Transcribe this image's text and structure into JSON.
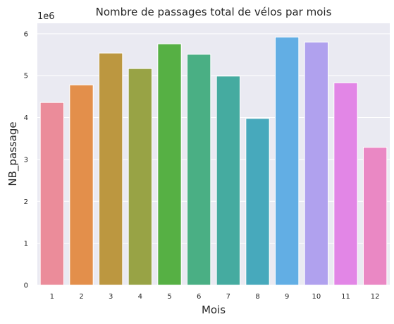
{
  "chart_data": {
    "type": "bar",
    "title": "Nombre de passages total de vélos par mois",
    "xlabel": "Mois",
    "ylabel": "NB_passage",
    "offset_label": "1e6",
    "categories": [
      "1",
      "2",
      "3",
      "4",
      "5",
      "6",
      "7",
      "8",
      "9",
      "10",
      "11",
      "12"
    ],
    "values": [
      4360000,
      4780000,
      5540000,
      5170000,
      5760000,
      5510000,
      4990000,
      3980000,
      5920000,
      5800000,
      4830000,
      3290000
    ],
    "ylim": [
      0,
      6250000
    ],
    "yticks": [
      0,
      1000000,
      2000000,
      3000000,
      4000000,
      5000000,
      6000000
    ],
    "ytick_labels": [
      "0",
      "1",
      "2",
      "3",
      "4",
      "5",
      "6"
    ],
    "grid": true,
    "style": "seaborn darkgrid",
    "background_color": "#eaeaf2",
    "colors": [
      "#eb8c9a",
      "#e38f4b",
      "#bc9740",
      "#98a345",
      "#56b044",
      "#4aaf84",
      "#45aba0",
      "#47a9bc",
      "#62aee4",
      "#b0a1ee",
      "#e286e6",
      "#ea88c4"
    ]
  }
}
